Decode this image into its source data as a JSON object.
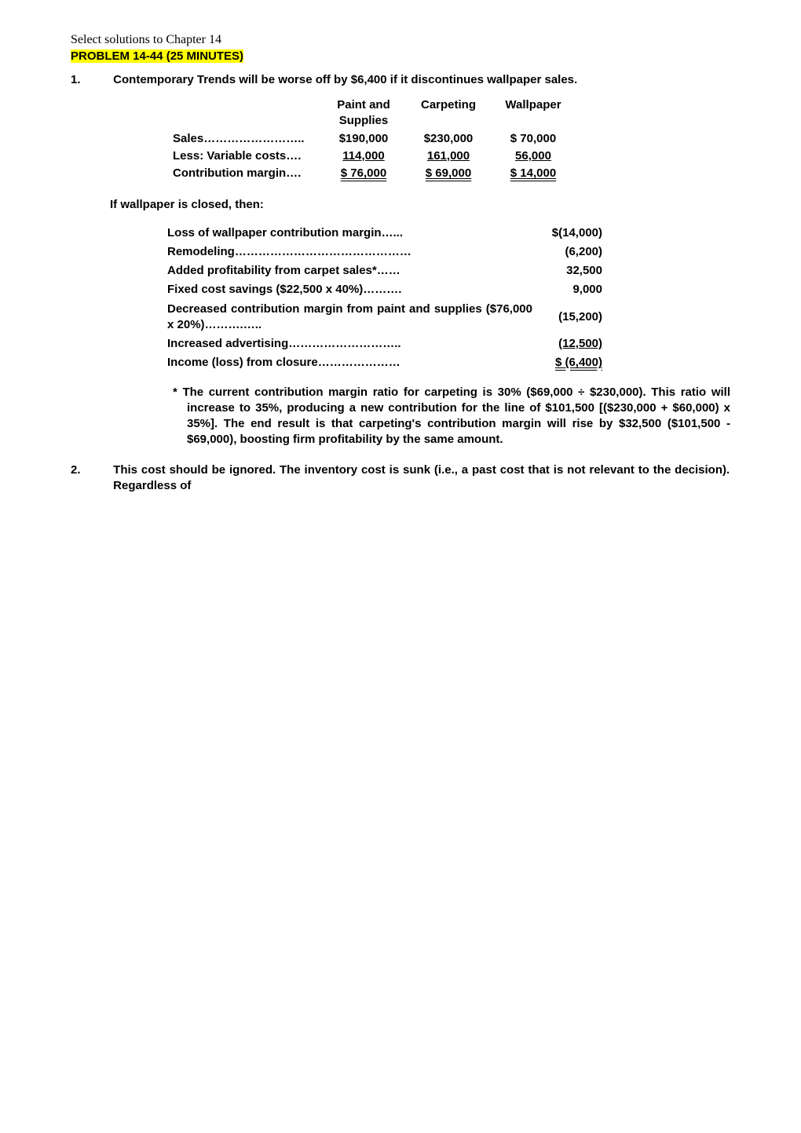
{
  "header": {
    "line1": "Select solutions to Chapter 14",
    "problem": "PROBLEM 14-44  (25 MINUTES)"
  },
  "q1": {
    "num": "1.",
    "text": "Contemporary Trends will be worse off by $6,400 if it discontinues wallpaper sales."
  },
  "table1": {
    "headers": {
      "c1": "Paint and Supplies",
      "c2": "Carpeting",
      "c3": "Wallpaper"
    },
    "rows": {
      "sales": {
        "label": "Sales……………………..",
        "c1": "$190,000",
        "c2": "$230,000",
        "c3": "$  70,000"
      },
      "less": {
        "label": "Less: Variable costs….",
        "c1": "  114,000",
        "c2": "  161,000",
        "c3": "    56,000"
      },
      "cm": {
        "label": "Contribution margin….",
        "c1": "$  76,000",
        "c2": "$  69,000",
        "c3": "$  14,000"
      }
    }
  },
  "closedLine": "If wallpaper is closed, then:",
  "table2": {
    "rows": {
      "loss": {
        "label": "Loss of wallpaper contribution margin…...",
        "val": "$(14,000)"
      },
      "remodel": {
        "label": "Remodeling………………………………………",
        "val": "(6,200)"
      },
      "added": {
        "label": "Added profitability from carpet sales*……",
        "val": "32,500"
      },
      "fixed": {
        "label": "Fixed cost savings ($22,500 x 40%)……….",
        "val": "9,000"
      },
      "decr1": {
        "label": "Decreased contribution margin from paint and supplies ($76,000 x 20%)……….…..",
        "val": "(15,200)"
      },
      "incadv": {
        "label": "Increased advertising………………………..",
        "val": "  (12,500)"
      },
      "income": {
        "label": "Income (loss) from closure…………………",
        "val": "$  (6,400)"
      }
    }
  },
  "note": "* The current contribution margin ratio for carpeting is 30% ($69,000 ÷ $230,000).  This ratio will increase to 35%, producing a new contribution for the line of $101,500 [($230,000 + $60,000) x 35%].  The end result is that carpeting's contribution margin will rise by $32,500 ($101,500 - $69,000), boosting firm profitability by the same amount.",
  "q2": {
    "num": "2.",
    "text": "This cost should be ignored.  The inventory cost is sunk (i.e., a past cost that is not relevant to the decision).  Regardless of"
  }
}
